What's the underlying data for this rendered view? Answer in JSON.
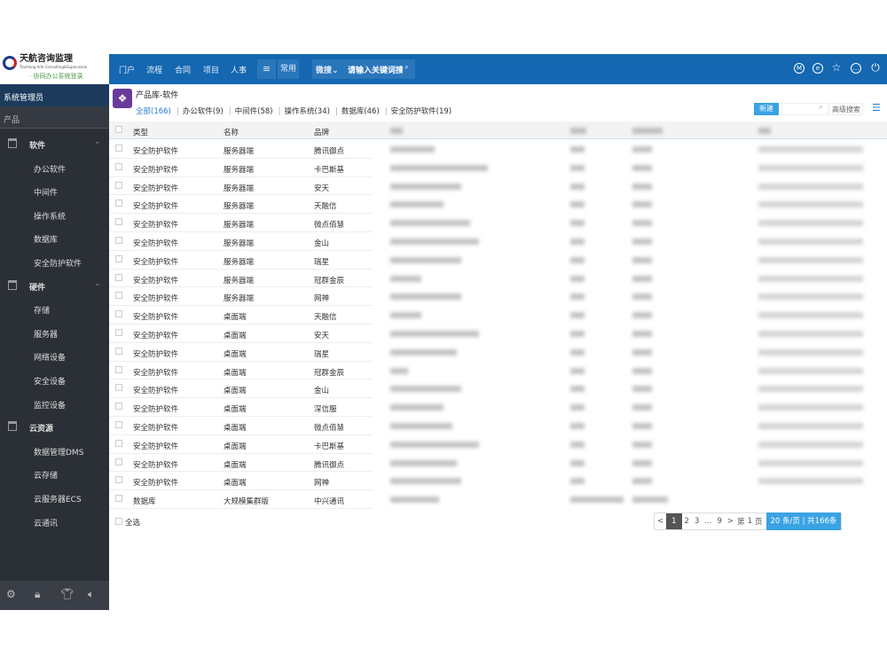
{
  "logo": {
    "name": "天航咨询监理",
    "subtitle": "Tianhang Info Consulting&Supervision",
    "tagline": "· 协同办公系统登录"
  },
  "topnav": {
    "items": [
      "门户",
      "流程",
      "合同",
      "项目",
      "人事"
    ],
    "menu_icon": "menu-icon",
    "common": "常用",
    "search_scope": "微搜",
    "search_placeholder": "请输入关键词搜索",
    "right_icons": [
      "m-circle-icon",
      "e-circle-icon",
      "star-icon",
      "more-icon",
      "power-icon"
    ]
  },
  "sidebar": {
    "user": "系统管理员",
    "section": "产品",
    "groups": [
      {
        "label": "软件",
        "items": [
          "办公软件",
          "中间件",
          "操作系统",
          "数据库",
          "安全防护软件"
        ]
      },
      {
        "label": "硬件",
        "items": [
          "存储",
          "服务器",
          "网络设备",
          "安全设备",
          "监控设备"
        ]
      },
      {
        "label": "云资源",
        "items": [
          "数据管理DMS",
          "云存储",
          "云服务器ECS",
          "云通讯"
        ]
      }
    ],
    "footer_icons": [
      "gear-icon",
      "lock-icon",
      "shirt-icon",
      "speaker-icon"
    ]
  },
  "main": {
    "title": "产品库-软件",
    "filters": [
      "全部(166)",
      "办公软件(9)",
      "中间件(58)",
      "操作系统(34)",
      "数据库(46)",
      "安全防护软件(19)"
    ],
    "new_label": "新建",
    "advanced_search": "高级搜索",
    "columns": [
      "类型",
      "名称",
      "品牌"
    ],
    "rows": [
      [
        "安全防护软件",
        "服务器端",
        "腾讯御点"
      ],
      [
        "安全防护软件",
        "服务器端",
        "卡巴斯基"
      ],
      [
        "安全防护软件",
        "服务器端",
        "安天"
      ],
      [
        "安全防护软件",
        "服务器端",
        "天融信"
      ],
      [
        "安全防护软件",
        "服务器端",
        "微点佰慧"
      ],
      [
        "安全防护软件",
        "服务器端",
        "金山"
      ],
      [
        "安全防护软件",
        "服务器端",
        "瑞星"
      ],
      [
        "安全防护软件",
        "服务器端",
        "冠群金辰"
      ],
      [
        "安全防护软件",
        "服务器端",
        "网神"
      ],
      [
        "安全防护软件",
        "桌面端",
        "天融信"
      ],
      [
        "安全防护软件",
        "桌面端",
        "安天"
      ],
      [
        "安全防护软件",
        "桌面端",
        "瑞星"
      ],
      [
        "安全防护软件",
        "桌面端",
        "冠群金辰"
      ],
      [
        "安全防护软件",
        "桌面端",
        "金山"
      ],
      [
        "安全防护软件",
        "桌面端",
        "深信服"
      ],
      [
        "安全防护软件",
        "桌面端",
        "微点佰慧"
      ],
      [
        "安全防护软件",
        "桌面端",
        "卡巴斯基"
      ],
      [
        "安全防护软件",
        "桌面端",
        "腾讯御点"
      ],
      [
        "安全防护软件",
        "桌面端",
        "网神"
      ],
      [
        "数据库",
        "大规模集群版",
        "中兴通讯"
      ]
    ],
    "select_all": "全选",
    "pager": {
      "prev": "<",
      "pages": [
        "1",
        "2",
        "3",
        "...",
        "9"
      ],
      "current": "1",
      "next": ">",
      "goto_prefix": "第",
      "goto_value": "1",
      "goto_suffix": "页",
      "page_size": "20",
      "page_size_suffix": "条/页 | 共166条"
    }
  },
  "colors": {
    "topbar": "#1467b0",
    "sidebar": "#2b2f36",
    "accent": "#3aa3e3"
  }
}
